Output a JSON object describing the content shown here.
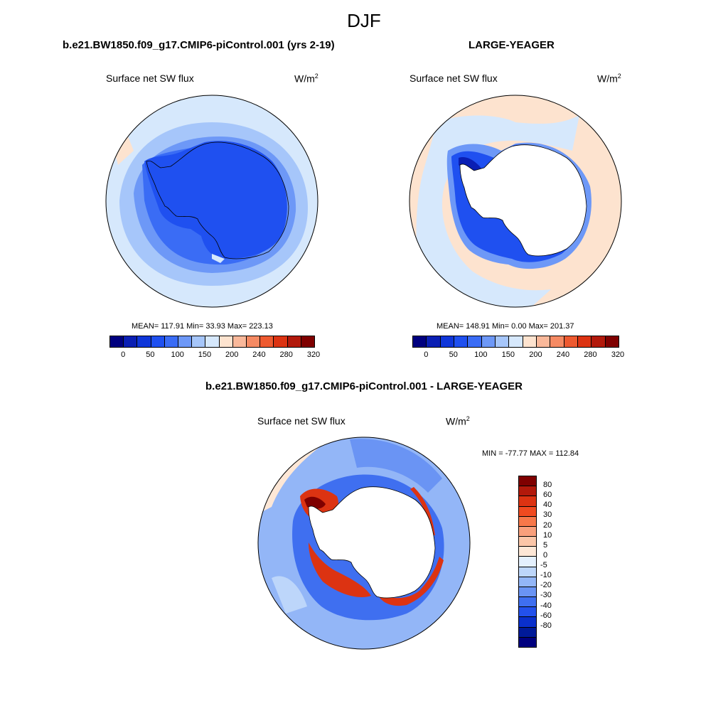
{
  "title": "DJF",
  "panel_left": {
    "title": "b.e21.BW1850.f09_g17.CMIP6-piControl.001 (yrs 2-19)",
    "var": "Surface net SW flux",
    "units_base": "W/m",
    "units_exp": "2",
    "stats": "MEAN= 117.91  Min=  33.93  Max= 223.13"
  },
  "panel_right": {
    "title": "LARGE-YEAGER",
    "var": "Surface net SW flux",
    "units_base": "W/m",
    "units_exp": "2",
    "stats": "MEAN= 148.91  Min=   0.00  Max= 201.37"
  },
  "panel_diff": {
    "title": "b.e21.BW1850.f09_g17.CMIP6-piControl.001 - LARGE-YEAGER",
    "var": "Surface net SW flux",
    "units_base": "W/m",
    "units_exp": "2",
    "stats": "MIN = -77.77 MAX = 112.84"
  },
  "colorbar_top": {
    "colors": [
      "#00007f",
      "#0a1fb4",
      "#0f36d9",
      "#1f50f0",
      "#3a6cf5",
      "#6d98f7",
      "#a6c6fa",
      "#d6e8fc",
      "#fde3cf",
      "#f9b89a",
      "#f58a63",
      "#ee5a30",
      "#dc3312",
      "#b2190b",
      "#7f0000"
    ],
    "ticks": [
      "0",
      "50",
      "100",
      "150",
      "200",
      "240",
      "280",
      "320"
    ]
  },
  "colorbar_diff": {
    "colors": [
      "#7f0000",
      "#b2190b",
      "#dc3312",
      "#f04a20",
      "#f7784a",
      "#f9a07c",
      "#fbc6a8",
      "#fde7d6",
      "#e4f0fd",
      "#bdd6fa",
      "#93b6f7",
      "#6a94f4",
      "#3f6ff0",
      "#2351eb",
      "#0a30cc",
      "#001a99",
      "#00007f"
    ],
    "ticks": [
      "80",
      "60",
      "40",
      "30",
      "20",
      "10",
      "5",
      "0",
      "-5",
      "-10",
      "-20",
      "-30",
      "-40",
      "-60",
      "-80"
    ]
  }
}
